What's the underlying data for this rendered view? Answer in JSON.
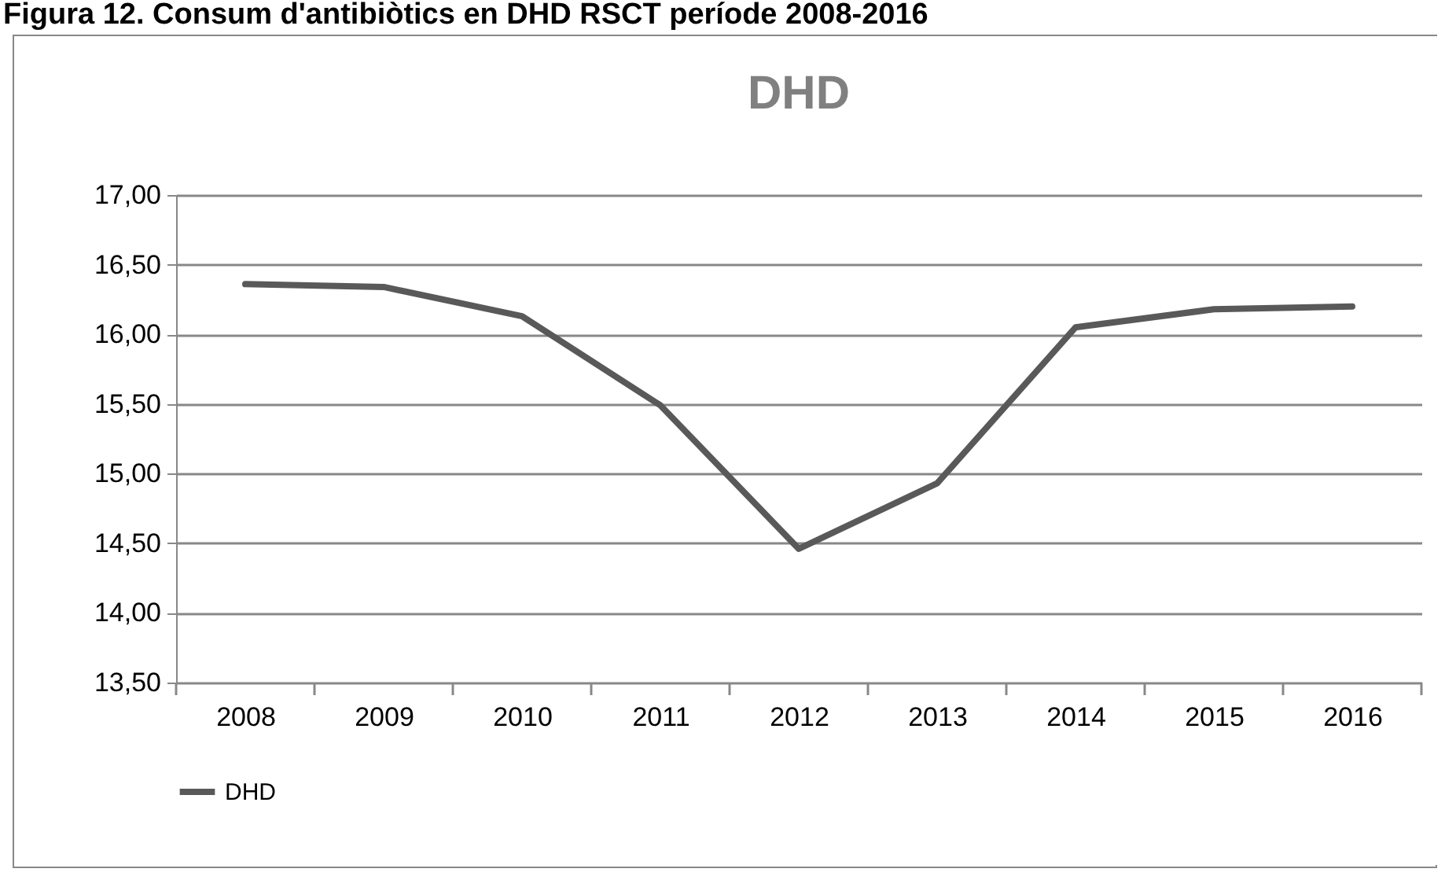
{
  "chart_data": {
    "type": "line",
    "title": "DHD",
    "annotations": [
      "Figura 12. Consum d'antibiòtics en DHD RSCT període 2008-2016"
    ],
    "categories": [
      "2008",
      "2009",
      "2010",
      "2011",
      "2012",
      "2013",
      "2014",
      "2015",
      "2016"
    ],
    "series": [
      {
        "name": "DHD",
        "color": "#595959",
        "values": [
          16.36,
          16.34,
          16.13,
          15.49,
          14.46,
          14.93,
          16.05,
          16.18,
          16.2
        ]
      }
    ],
    "ylim": [
      13.5,
      17
    ],
    "yticks": [
      {
        "value": 13.5,
        "label": "13,50"
      },
      {
        "value": 14,
        "label": "14,00"
      },
      {
        "value": 14.5,
        "label": "14,50"
      },
      {
        "value": 15,
        "label": "15,00"
      },
      {
        "value": 15.5,
        "label": "15,50"
      },
      {
        "value": 16,
        "label": "16,00"
      },
      {
        "value": 16.5,
        "label": "16,50"
      },
      {
        "value": 17,
        "label": "17,00"
      }
    ],
    "grid": "y",
    "legend": "bottom",
    "marker": "none",
    "line_style": "solid"
  }
}
